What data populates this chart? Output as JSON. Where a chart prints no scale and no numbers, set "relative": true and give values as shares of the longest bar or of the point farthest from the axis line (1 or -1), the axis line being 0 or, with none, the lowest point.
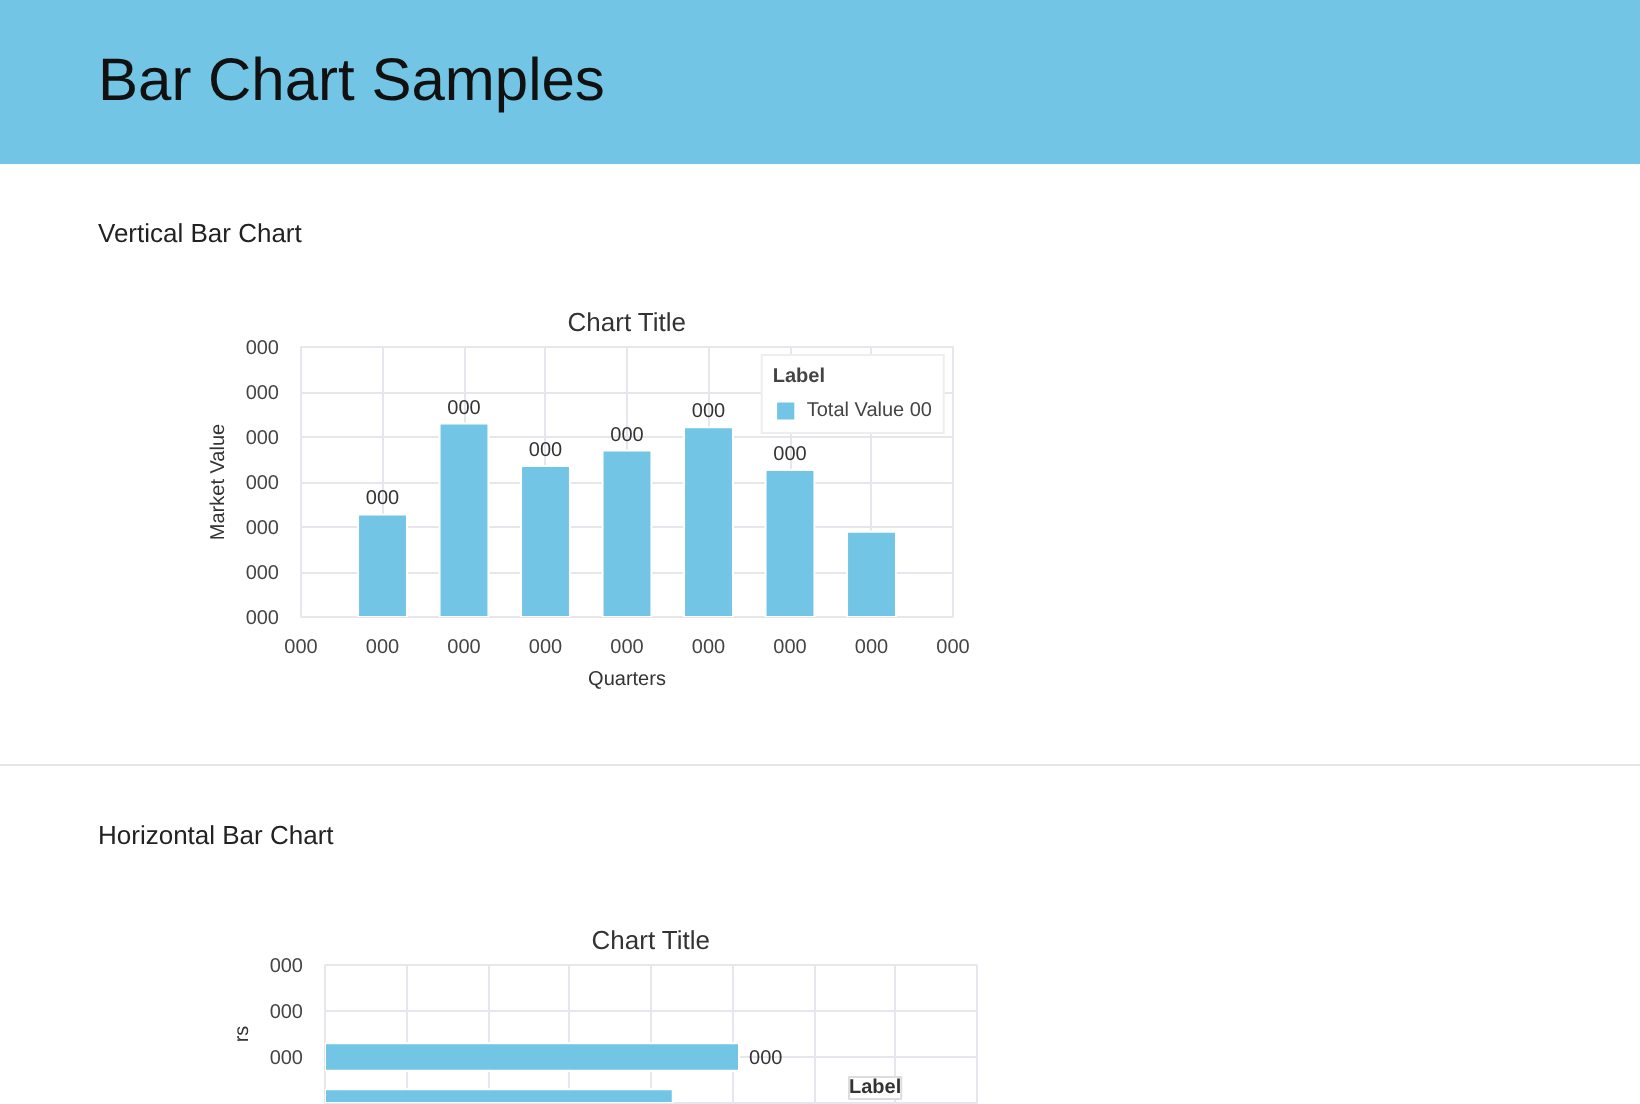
{
  "chart_data": [
    {
      "type": "bar",
      "title": "Chart Title",
      "subtitle": "Vertical Bar Chart",
      "annotations": [
        "Bar Chart Samples",
        "000",
        "000",
        "000",
        "000",
        "000",
        "000",
        "000"
      ],
      "xlabel": "Quarters",
      "ylabel": "Market Value",
      "legend_title": "Label",
      "relative": true,
      "categories": [
        "000",
        "000",
        "000",
        "000",
        "000",
        "000",
        "000",
        "000",
        "000"
      ],
      "series": [
        {
          "name": "Total Value 00",
          "color": "#72c5e5",
          "values": [
            null,
            0.53,
            1,
            0.78,
            0.86,
            0.98,
            0.76,
            0.44,
            null
          ]
        }
      ],
      "value_labels": [
        null,
        "000",
        "000",
        "000",
        "000",
        "000",
        "000",
        null,
        null
      ],
      "grid": true,
      "legend": "top right"
    },
    {
      "type": "bar",
      "orientation": "horizontal",
      "title": "Chart Title",
      "subtitle": "Horizontal Bar Chart",
      "ylabel": "rs",
      "legend_title": "Label",
      "relative": true,
      "categories": [
        "000",
        "000",
        "000",
        null
      ],
      "series": [
        {
          "color": "#72c5e5",
          "values": [
            null,
            null,
            1,
            0.84
          ]
        }
      ],
      "value_labels": [
        null,
        null,
        "000",
        null
      ],
      "grid": true,
      "tick_labels": "y"
    }
  ]
}
